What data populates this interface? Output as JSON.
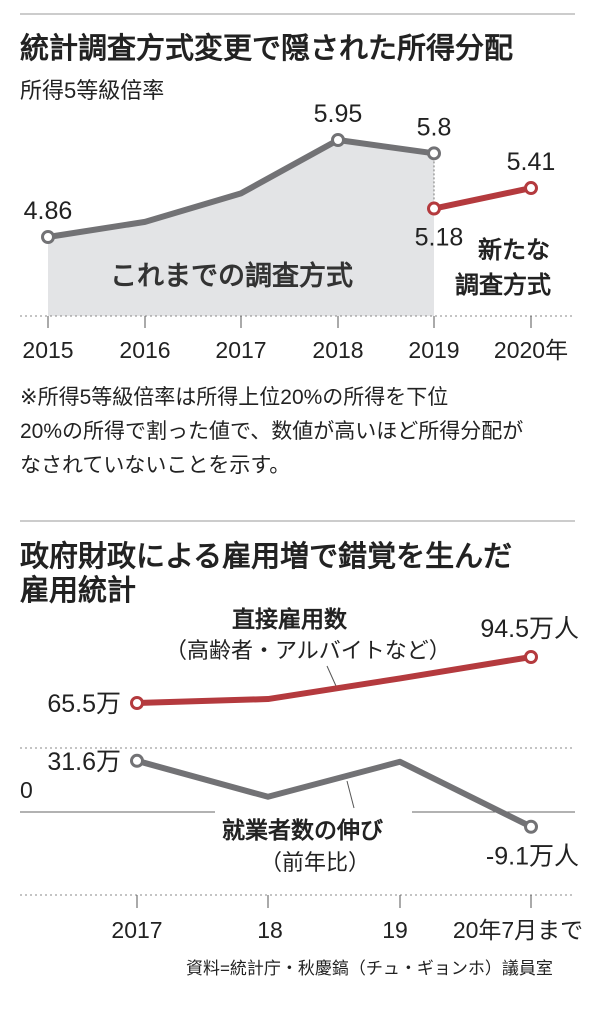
{
  "colors": {
    "gray_line": "#727275",
    "red_line": "#b43a3e",
    "area": "#e3e4e6",
    "text": "#222222"
  },
  "chart_data": [
    {
      "type": "line",
      "title": "統計調査方式変更で隠された所得分配",
      "subtitle": "所得5等級倍率",
      "categories": [
        "2015",
        "2016",
        "2017",
        "2018",
        "2019",
        "2020年"
      ],
      "series": [
        {
          "name": "これまでの調査方式",
          "values": [
            4.86,
            5.03,
            5.35,
            5.95,
            5.8,
            null
          ],
          "labels": [
            "4.86",
            null,
            null,
            "5.95",
            "5.8",
            null
          ]
        },
        {
          "name": "新たな調査方式",
          "name_lines": [
            "新たな",
            "調査方式"
          ],
          "values": [
            null,
            null,
            null,
            null,
            5.18,
            5.41
          ],
          "labels": [
            null,
            null,
            null,
            null,
            "5.18",
            "5.41"
          ]
        }
      ],
      "note": [
        "※所得5等級倍率は所得上位20%の所得を下位",
        "20%の所得で割った値で、数値が高いほど所得分配が",
        "なされていないことを示す。"
      ]
    },
    {
      "type": "line",
      "title_lines": [
        "政府財政による雇用増で錯覚を生んだ",
        "雇用統計"
      ],
      "categories": [
        "2017",
        "18",
        "19",
        "20年7月まで"
      ],
      "zero_label": "0",
      "series": [
        {
          "name": "直接雇用数",
          "name_sub": "（高齢者・アルバイトなど）",
          "values": [
            65.5,
            68,
            81,
            94.5
          ],
          "labels": [
            "65.5万",
            null,
            null,
            "94.5万人"
          ]
        },
        {
          "name": "就業者数の伸び",
          "name_sub": "（前年比）",
          "values": [
            31.6,
            9.4,
            31,
            -9.1
          ],
          "labels": [
            "31.6万",
            null,
            null,
            "-9.1万人"
          ]
        }
      ],
      "source": "資料=統計庁・秋慶鎬（チュ・ギョンホ）議員室"
    }
  ]
}
